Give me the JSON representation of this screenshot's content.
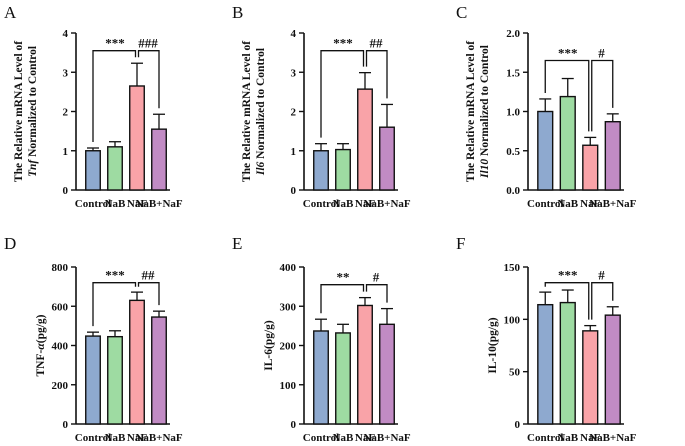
{
  "figure": {
    "colors": {
      "Control": "#8ea9cf",
      "NaB": "#9edba2",
      "NaF": "#f9a3a8",
      "NaB+NaF": "#c18bc4",
      "axis": "#111111"
    }
  },
  "chart_data": [
    {
      "panel": "A",
      "type": "bar",
      "categories": [
        "Control",
        "NaB",
        "NaF",
        "NaB+NaF"
      ],
      "values": [
        1.0,
        1.1,
        2.65,
        1.55
      ],
      "errors": [
        0.07,
        0.13,
        0.58,
        0.38
      ],
      "ylim": [
        0,
        4
      ],
      "ticks": [
        "0",
        "1",
        "2",
        "3",
        "4"
      ],
      "ylabel_line1": "The Relative mRNA Level of",
      "ylabel_gene": "Tnf",
      "ylabel_line2": " Normalized to Control",
      "comparisons": [
        {
          "from": 0,
          "to": 2,
          "label": "***",
          "level": 3.55
        },
        {
          "from": 2,
          "to": 3,
          "label": "###",
          "level": 3.55
        }
      ]
    },
    {
      "panel": "B",
      "type": "bar",
      "categories": [
        "Control",
        "NaB",
        "NaF",
        "NaB+NaF"
      ],
      "values": [
        1.0,
        1.03,
        2.57,
        1.6
      ],
      "errors": [
        0.18,
        0.15,
        0.42,
        0.58
      ],
      "ylim": [
        0,
        4
      ],
      "ticks": [
        "0",
        "1",
        "2",
        "3",
        "4"
      ],
      "ylabel_line1": "The Relative mRNA Level of",
      "ylabel_gene": "Il6",
      "ylabel_line2": " Normalized to Control",
      "comparisons": [
        {
          "from": 0,
          "to": 2,
          "label": "***",
          "level": 3.55
        },
        {
          "from": 2,
          "to": 3,
          "label": "##",
          "level": 3.55
        }
      ]
    },
    {
      "panel": "C",
      "type": "bar",
      "categories": [
        "Control",
        "NaB",
        "NaF",
        "NaB+NaF"
      ],
      "values": [
        1.0,
        1.19,
        0.57,
        0.87
      ],
      "errors": [
        0.16,
        0.23,
        0.1,
        0.1
      ],
      "ylim": [
        0,
        2.0
      ],
      "ticks": [
        "0.0",
        "0.5",
        "1.0",
        "1.5",
        "2.0"
      ],
      "ylabel_line1": "The Relative mRNA Level of",
      "ylabel_gene": "Il10",
      "ylabel_line2": " Normalized to Control",
      "comparisons": [
        {
          "from": 0,
          "to": 2,
          "label": "***",
          "level": 1.65
        },
        {
          "from": 2,
          "to": 3,
          "label": "#",
          "level": 1.65
        }
      ]
    },
    {
      "panel": "D",
      "type": "bar",
      "categories": [
        "Control",
        "NaB",
        "NaF",
        "NaB+NaF"
      ],
      "values": [
        448,
        445,
        630,
        545
      ],
      "errors": [
        20,
        30,
        42,
        30
      ],
      "ylim": [
        0,
        800
      ],
      "ticks": [
        "0",
        "200",
        "400",
        "600",
        "800"
      ],
      "ylabel_line1": "TNF-",
      "ylabel_gene": "α",
      "ylabel_line2": "(pg/g)",
      "comparisons": [
        {
          "from": 0,
          "to": 2,
          "label": "***",
          "level": 720
        },
        {
          "from": 2,
          "to": 3,
          "label": "##",
          "level": 720
        }
      ]
    },
    {
      "panel": "E",
      "type": "bar",
      "categories": [
        "Control",
        "NaB",
        "NaF",
        "NaB+NaF"
      ],
      "values": [
        237,
        232,
        302,
        254
      ],
      "errors": [
        30,
        22,
        20,
        40
      ],
      "ylim": [
        0,
        400
      ],
      "ticks": [
        "0",
        "100",
        "200",
        "300",
        "400"
      ],
      "ylabel_line1": "IL-6(pg/g)",
      "ylabel_gene": "",
      "ylabel_line2": "",
      "comparisons": [
        {
          "from": 0,
          "to": 2,
          "label": "**",
          "level": 355
        },
        {
          "from": 2,
          "to": 3,
          "label": "#",
          "level": 355
        }
      ]
    },
    {
      "panel": "F",
      "type": "bar",
      "categories": [
        "Control",
        "NaB",
        "NaF",
        "NaB+NaF"
      ],
      "values": [
        114,
        116,
        89,
        104
      ],
      "errors": [
        12,
        12,
        5,
        8
      ],
      "ylim": [
        0,
        150
      ],
      "ticks": [
        "0",
        "50",
        "100",
        "150"
      ],
      "ylabel_line1": "IL-10(pg/g)",
      "ylabel_gene": "",
      "ylabel_line2": "",
      "comparisons": [
        {
          "from": 0,
          "to": 2,
          "label": "***",
          "level": 135
        },
        {
          "from": 2,
          "to": 3,
          "label": "#",
          "level": 135
        }
      ]
    }
  ]
}
